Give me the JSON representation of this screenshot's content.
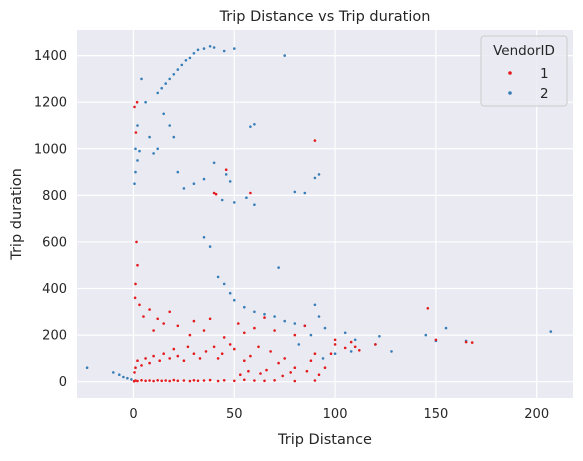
{
  "chart_data": {
    "type": "scatter",
    "title": "Trip Distance vs Trip duration",
    "xlabel": "Trip Distance",
    "ylabel": "Trip duration",
    "xlim": [
      -28,
      218
    ],
    "ylim": [
      -70,
      1510
    ],
    "x_ticks": [
      0,
      50,
      100,
      150,
      200
    ],
    "y_ticks": [
      0,
      200,
      400,
      600,
      800,
      1000,
      1200,
      1400
    ],
    "grid": true,
    "background": "#eaeaf2",
    "legend": {
      "title": "VendorID",
      "placement": "top-right",
      "entries": [
        "1",
        "2"
      ]
    },
    "series": [
      {
        "name": "1",
        "color": "#e41a1c",
        "points": [
          [
            0.5,
            1180
          ],
          [
            1.2,
            1070
          ],
          [
            1.8,
            1200
          ],
          [
            40,
            810
          ],
          [
            41,
            805
          ],
          [
            46,
            910
          ],
          [
            58,
            810
          ],
          [
            90,
            1035
          ],
          [
            146,
            315
          ],
          [
            150,
            180
          ],
          [
            165,
            170
          ],
          [
            168,
            168
          ],
          [
            110,
            150
          ],
          [
            105,
            145
          ],
          [
            112,
            135
          ],
          [
            100,
            180
          ],
          [
            85,
            240
          ],
          [
            80,
            200
          ],
          [
            70,
            220
          ],
          [
            65,
            275
          ],
          [
            60,
            230
          ],
          [
            55,
            210
          ],
          [
            52,
            250
          ],
          [
            45,
            190
          ],
          [
            38,
            270
          ],
          [
            35,
            220
          ],
          [
            30,
            260
          ],
          [
            28,
            200
          ],
          [
            22,
            240
          ],
          [
            18,
            300
          ],
          [
            15,
            250
          ],
          [
            12,
            270
          ],
          [
            10,
            220
          ],
          [
            8,
            310
          ],
          [
            5,
            280
          ],
          [
            3,
            330
          ],
          [
            2,
            500
          ],
          [
            1,
            420
          ],
          [
            1.5,
            600
          ],
          [
            0.8,
            360
          ],
          [
            95,
            60
          ],
          [
            90,
            120
          ],
          [
            88,
            90
          ],
          [
            80,
            60
          ],
          [
            75,
            100
          ],
          [
            72,
            80
          ],
          [
            68,
            130
          ],
          [
            62,
            150
          ],
          [
            58,
            110
          ],
          [
            55,
            90
          ],
          [
            50,
            140
          ],
          [
            48,
            160
          ],
          [
            44,
            120
          ],
          [
            42,
            100
          ],
          [
            40,
            150
          ],
          [
            36,
            130
          ],
          [
            33,
            100
          ],
          [
            30,
            120
          ],
          [
            27,
            150
          ],
          [
            25,
            90
          ],
          [
            22,
            110
          ],
          [
            20,
            140
          ],
          [
            18,
            100
          ],
          [
            15,
            120
          ],
          [
            13,
            90
          ],
          [
            10,
            110
          ],
          [
            8,
            80
          ],
          [
            6,
            100
          ],
          [
            4,
            70
          ],
          [
            2,
            90
          ],
          [
            1,
            60
          ],
          [
            0.5,
            40
          ],
          [
            60,
            5
          ],
          [
            55,
            8
          ],
          [
            50,
            4
          ],
          [
            45,
            6
          ],
          [
            42,
            3
          ],
          [
            38,
            7
          ],
          [
            35,
            5
          ],
          [
            32,
            4
          ],
          [
            30,
            6
          ],
          [
            28,
            3
          ],
          [
            25,
            5
          ],
          [
            22,
            4
          ],
          [
            20,
            7
          ],
          [
            18,
            3
          ],
          [
            16,
            5
          ],
          [
            14,
            4
          ],
          [
            12,
            6
          ],
          [
            10,
            3
          ],
          [
            8,
            5
          ],
          [
            6,
            4
          ],
          [
            4,
            6
          ],
          [
            2,
            3
          ],
          [
            1,
            5
          ],
          [
            0.3,
            2
          ],
          [
            90,
            5
          ],
          [
            80,
            3
          ],
          [
            70,
            6
          ],
          [
            65,
            4
          ],
          [
            100,
            160
          ],
          [
            98,
            120
          ],
          [
            108,
            170
          ],
          [
            120,
            160
          ],
          [
            92,
            30
          ],
          [
            86,
            45
          ],
          [
            78,
            40
          ],
          [
            74,
            25
          ],
          [
            66,
            50
          ],
          [
            63,
            35
          ],
          [
            57,
            45
          ],
          [
            53,
            30
          ]
        ]
      },
      {
        "name": "2",
        "color": "#377eb8",
        "points": [
          [
            -23,
            60
          ],
          [
            -10,
            40
          ],
          [
            -7,
            30
          ],
          [
            -5,
            20
          ],
          [
            -3,
            15
          ],
          [
            -1,
            10
          ],
          [
            207,
            215
          ],
          [
            155,
            230
          ],
          [
            150,
            175
          ],
          [
            165,
            175
          ],
          [
            145,
            200
          ],
          [
            128,
            130
          ],
          [
            122,
            195
          ],
          [
            120,
            160
          ],
          [
            110,
            180
          ],
          [
            108,
            130
          ],
          [
            100,
            120
          ],
          [
            94,
            100
          ],
          [
            90,
            330
          ],
          [
            92,
            280
          ],
          [
            88,
            200
          ],
          [
            82,
            160
          ],
          [
            75,
            1400
          ],
          [
            60,
            1105
          ],
          [
            58,
            1095
          ],
          [
            90,
            875
          ],
          [
            92,
            890
          ],
          [
            85,
            810
          ],
          [
            80,
            815
          ],
          [
            60,
            760
          ],
          [
            56,
            790
          ],
          [
            50,
            770
          ],
          [
            44,
            780
          ],
          [
            40,
            940
          ],
          [
            46,
            890
          ],
          [
            48,
            860
          ],
          [
            35,
            870
          ],
          [
            30,
            850
          ],
          [
            25,
            830
          ],
          [
            22,
            900
          ],
          [
            20,
            1050
          ],
          [
            18,
            1100
          ],
          [
            15,
            1150
          ],
          [
            12,
            1000
          ],
          [
            10,
            980
          ],
          [
            8,
            1050
          ],
          [
            6,
            1200
          ],
          [
            4,
            1300
          ],
          [
            3,
            990
          ],
          [
            2,
            950
          ],
          [
            1,
            900
          ],
          [
            0.5,
            850
          ],
          [
            1,
            1000
          ],
          [
            2,
            1100
          ],
          [
            50,
            1430
          ],
          [
            45,
            1420
          ],
          [
            40,
            1435
          ],
          [
            38,
            1440
          ],
          [
            35,
            1430
          ],
          [
            32,
            1425
          ],
          [
            30,
            1410
          ],
          [
            28,
            1390
          ],
          [
            26,
            1380
          ],
          [
            24,
            1360
          ],
          [
            22,
            1340
          ],
          [
            20,
            1320
          ],
          [
            18,
            1300
          ],
          [
            16,
            1280
          ],
          [
            14,
            1260
          ],
          [
            12,
            1240
          ],
          [
            35,
            620
          ],
          [
            38,
            580
          ],
          [
            42,
            450
          ],
          [
            45,
            420
          ],
          [
            48,
            380
          ],
          [
            50,
            350
          ],
          [
            55,
            320
          ],
          [
            60,
            300
          ],
          [
            65,
            290
          ],
          [
            70,
            280
          ],
          [
            72,
            490
          ],
          [
            75,
            260
          ],
          [
            80,
            250
          ],
          [
            85,
            240
          ],
          [
            95,
            230
          ],
          [
            105,
            210
          ]
        ]
      }
    ]
  }
}
